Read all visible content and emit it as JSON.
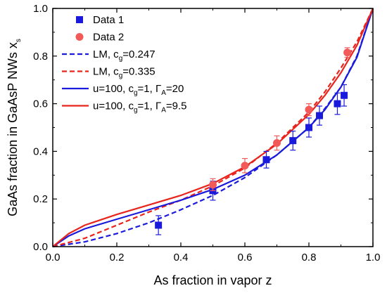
{
  "chart_data": {
    "type": "scatter",
    "xlabel": "As fraction in vapor z",
    "ylabel": "GaAs fraction in GaAsP NWs x",
    "ylabel_sub": "s",
    "xlim": [
      0,
      1
    ],
    "ylim": [
      0,
      1
    ],
    "xticks": [
      "0.0",
      "0.2",
      "0.4",
      "0.6",
      "0.8",
      "1.0"
    ],
    "yticks": [
      "0.0",
      "0.2",
      "0.4",
      "0.6",
      "0.8",
      "1.0"
    ],
    "grid": false,
    "legend_position": "top-left",
    "colors": {
      "blue": "#1a1adc",
      "red": "#e8241c",
      "red_marker": "#f25a5a"
    },
    "series": [
      {
        "name": "Data 1",
        "kind": "points",
        "marker": "square",
        "color": "#1a1adc",
        "x": [
          0.33,
          0.5,
          0.667,
          0.75,
          0.8,
          0.833,
          0.889,
          0.91
        ],
        "y": [
          0.09,
          0.235,
          0.365,
          0.445,
          0.5,
          0.55,
          0.6,
          0.635
        ],
        "err": [
          0.04,
          0.04,
          0.035,
          0.04,
          0.04,
          0.04,
          0.045,
          0.045
        ]
      },
      {
        "name": "Data 2",
        "kind": "points",
        "marker": "circle",
        "color": "#f25a5a",
        "x": [
          0.5,
          0.6,
          0.7,
          0.8,
          0.92
        ],
        "y": [
          0.26,
          0.34,
          0.435,
          0.575,
          0.815
        ],
        "err": [
          0.025,
          0.03,
          0.03,
          0.025,
          0.02
        ]
      },
      {
        "name": "LM, c",
        "name_sub": "g",
        "name_suffix": "=0.247",
        "kind": "line",
        "dash": true,
        "color": "#1a1adc",
        "x": [
          0,
          0.1,
          0.2,
          0.3,
          0.4,
          0.5,
          0.6,
          0.7,
          0.8,
          0.85,
          0.9,
          0.95,
          1.0
        ],
        "y": [
          0,
          0.02,
          0.055,
          0.1,
          0.155,
          0.215,
          0.29,
          0.385,
          0.5,
          0.58,
          0.67,
          0.8,
          1.0
        ]
      },
      {
        "name": "LM, c",
        "name_sub": "g",
        "name_suffix": "=0.335",
        "kind": "line",
        "dash": true,
        "color": "#e8241c",
        "x": [
          0,
          0.1,
          0.2,
          0.3,
          0.4,
          0.5,
          0.6,
          0.7,
          0.8,
          0.85,
          0.9,
          0.95,
          1.0
        ],
        "y": [
          0,
          0.035,
          0.09,
          0.145,
          0.195,
          0.255,
          0.33,
          0.435,
          0.565,
          0.65,
          0.75,
          0.86,
          1.0
        ]
      },
      {
        "name": "u=100, c",
        "name_sub": "g",
        "name_suffix": "=1, Γ",
        "name_sub2": "A",
        "name_suffix2": "=20",
        "kind": "line",
        "dash": false,
        "color": "#1a1adc",
        "x": [
          0,
          0.05,
          0.1,
          0.2,
          0.3,
          0.4,
          0.5,
          0.6,
          0.7,
          0.8,
          0.85,
          0.9,
          0.95,
          1.0
        ],
        "y": [
          0,
          0.045,
          0.075,
          0.115,
          0.155,
          0.195,
          0.24,
          0.3,
          0.385,
          0.5,
          0.575,
          0.67,
          0.795,
          1.0
        ]
      },
      {
        "name": "u=100, c",
        "name_sub": "g",
        "name_suffix": "=1, Γ",
        "name_sub2": "A",
        "name_suffix2": "=9.5",
        "kind": "line",
        "dash": false,
        "color": "#e8241c",
        "x": [
          0,
          0.05,
          0.1,
          0.2,
          0.3,
          0.4,
          0.5,
          0.6,
          0.7,
          0.8,
          0.85,
          0.9,
          0.95,
          1.0
        ],
        "y": [
          0,
          0.055,
          0.09,
          0.135,
          0.175,
          0.215,
          0.265,
          0.335,
          0.43,
          0.555,
          0.635,
          0.73,
          0.845,
          1.0
        ]
      }
    ]
  }
}
